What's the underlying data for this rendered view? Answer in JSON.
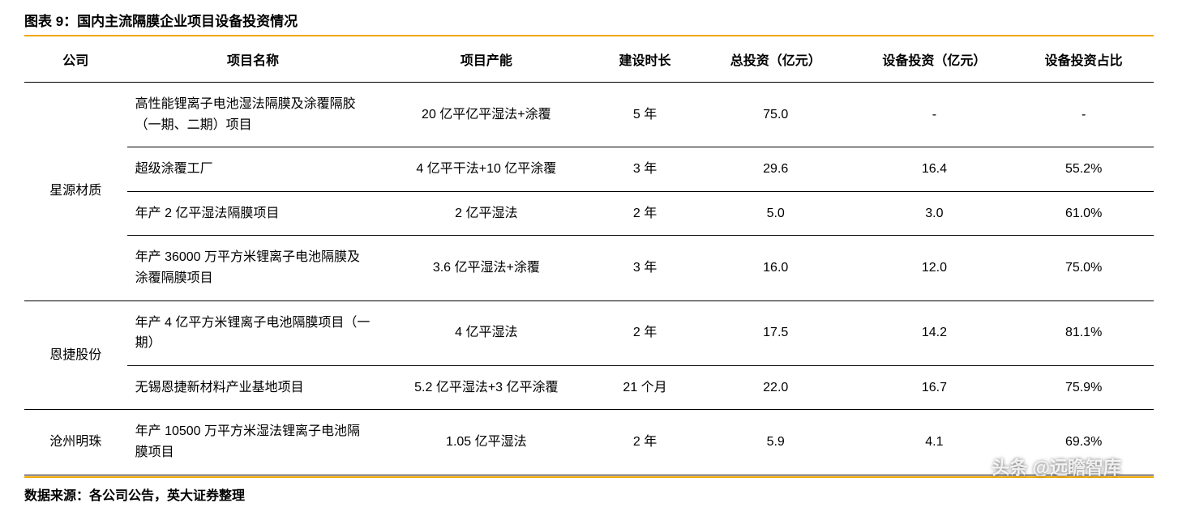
{
  "title": "图表 9：国内主流隔膜企业项目设备投资情况",
  "columns": [
    "公司",
    "项目名称",
    "项目产能",
    "建设时长",
    "总投资（亿元）",
    "设备投资（亿元）",
    "设备投资占比"
  ],
  "groups": [
    {
      "company": "星源材质",
      "rows": [
        {
          "project": "高性能锂离子电池湿法隔膜及涂覆隔胶（一期、二期）项目",
          "capacity": "20 亿平亿平湿法+涂覆",
          "duration": "5 年",
          "total": "75.0",
          "equip": "-",
          "ratio": "-"
        },
        {
          "project": "超级涂覆工厂",
          "capacity": "4 亿平干法+10 亿平涂覆",
          "duration": "3 年",
          "total": "29.6",
          "equip": "16.4",
          "ratio": "55.2%"
        },
        {
          "project": "年产 2 亿平湿法隔膜项目",
          "capacity": "2 亿平湿法",
          "duration": "2 年",
          "total": "5.0",
          "equip": "3.0",
          "ratio": "61.0%"
        },
        {
          "project": "年产 36000 万平方米锂离子电池隔膜及涂覆隔膜项目",
          "capacity": "3.6 亿平湿法+涂覆",
          "duration": "3 年",
          "total": "16.0",
          "equip": "12.0",
          "ratio": "75.0%"
        }
      ]
    },
    {
      "company": "恩捷股份",
      "rows": [
        {
          "project": "年产 4 亿平方米锂离子电池隔膜项目（一期）",
          "capacity": "4 亿平湿法",
          "duration": "2 年",
          "total": "17.5",
          "equip": "14.2",
          "ratio": "81.1%"
        },
        {
          "project": "无锡恩捷新材料产业基地项目",
          "capacity": "5.2 亿平湿法+3 亿平涂覆",
          "duration": "21 个月",
          "total": "22.0",
          "equip": "16.7",
          "ratio": "75.9%"
        }
      ]
    },
    {
      "company": "沧州明珠",
      "rows": [
        {
          "project": "年产 10500 万平方米湿法锂离子电池隔膜项目",
          "capacity": "1.05 亿平湿法",
          "duration": "2 年",
          "total": "5.9",
          "equip": "4.1",
          "ratio": "69.3%"
        }
      ]
    }
  ],
  "source": "数据来源：各公司公告，英大证券整理",
  "watermark": "头条 @远瞻智库",
  "style": {
    "accent_color": "#f0a800",
    "border_color": "#000000",
    "text_color": "#000000",
    "background_color": "#ffffff",
    "title_fontsize": 17,
    "body_fontsize": 16
  }
}
